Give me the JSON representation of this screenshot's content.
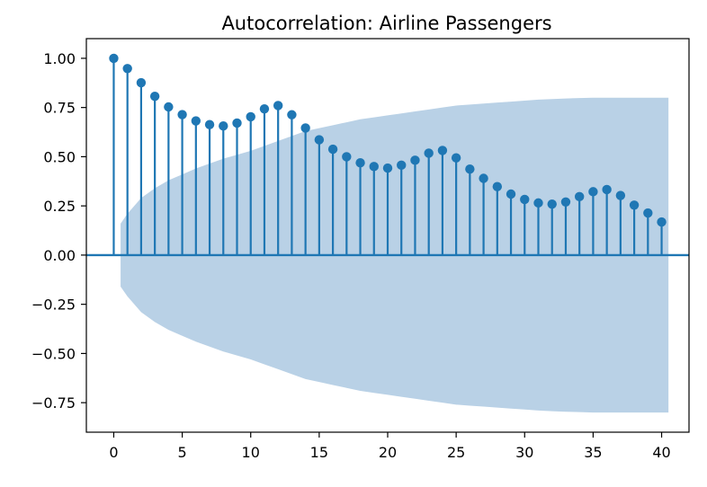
{
  "chart_data": {
    "type": "stem",
    "title": "Autocorrelation: Airline Passengers",
    "xlabel": "",
    "ylabel": "",
    "xlim": [
      -2,
      42
    ],
    "ylim": [
      -0.9,
      1.1
    ],
    "xticks": [
      0,
      5,
      10,
      15,
      20,
      25,
      30,
      35,
      40
    ],
    "yticks": [
      -0.75,
      -0.5,
      -0.25,
      0.0,
      0.25,
      0.5,
      0.75,
      1.0
    ],
    "ytick_labels": [
      "−0.75",
      "−0.50",
      "−0.25",
      "0.00",
      "0.25",
      "0.50",
      "0.75",
      "1.00"
    ],
    "lags": [
      0,
      1,
      2,
      3,
      4,
      5,
      6,
      7,
      8,
      9,
      10,
      11,
      12,
      13,
      14,
      15,
      16,
      17,
      18,
      19,
      20,
      21,
      22,
      23,
      24,
      25,
      26,
      27,
      28,
      29,
      30,
      31,
      32,
      33,
      34,
      35,
      36,
      37,
      38,
      39,
      40
    ],
    "acf": [
      1.0,
      0.948,
      0.876,
      0.807,
      0.753,
      0.714,
      0.682,
      0.663,
      0.656,
      0.671,
      0.703,
      0.743,
      0.76,
      0.713,
      0.646,
      0.586,
      0.538,
      0.5,
      0.469,
      0.45,
      0.442,
      0.457,
      0.482,
      0.518,
      0.532,
      0.494,
      0.437,
      0.39,
      0.348,
      0.31,
      0.283,
      0.265,
      0.259,
      0.27,
      0.297,
      0.322,
      0.333,
      0.303,
      0.254,
      0.214,
      0.168
    ],
    "confidence_band": {
      "lags": [
        0.5,
        1,
        2,
        3,
        4,
        5,
        6,
        7,
        8,
        9,
        10,
        11,
        12,
        13,
        14,
        15,
        16,
        17,
        18,
        19,
        20,
        21,
        22,
        23,
        24,
        25,
        26,
        27,
        28,
        29,
        30,
        31,
        32,
        33,
        34,
        35,
        36,
        37,
        38,
        39,
        40.5
      ],
      "upper": [
        0.16,
        0.21,
        0.29,
        0.34,
        0.38,
        0.41,
        0.44,
        0.465,
        0.49,
        0.51,
        0.53,
        0.555,
        0.58,
        0.605,
        0.63,
        0.645,
        0.66,
        0.675,
        0.69,
        0.7,
        0.71,
        0.72,
        0.73,
        0.74,
        0.75,
        0.76,
        0.765,
        0.77,
        0.775,
        0.78,
        0.785,
        0.79,
        0.793,
        0.796,
        0.798,
        0.8,
        0.8,
        0.8,
        0.8,
        0.8,
        0.8
      ],
      "lower": [
        -0.16,
        -0.21,
        -0.29,
        -0.34,
        -0.38,
        -0.41,
        -0.44,
        -0.465,
        -0.49,
        -0.51,
        -0.53,
        -0.555,
        -0.58,
        -0.605,
        -0.63,
        -0.645,
        -0.66,
        -0.675,
        -0.69,
        -0.7,
        -0.71,
        -0.72,
        -0.73,
        -0.74,
        -0.75,
        -0.76,
        -0.765,
        -0.77,
        -0.775,
        -0.78,
        -0.785,
        -0.79,
        -0.793,
        -0.796,
        -0.798,
        -0.8,
        -0.8,
        -0.8,
        -0.8,
        -0.8,
        -0.8
      ]
    },
    "grid": false,
    "colors": {
      "stem": "#1f77b4",
      "marker": "#1f77b4",
      "band": "#b9d1e6",
      "axis": "#000000",
      "zero_line": "#1f77b4"
    }
  }
}
